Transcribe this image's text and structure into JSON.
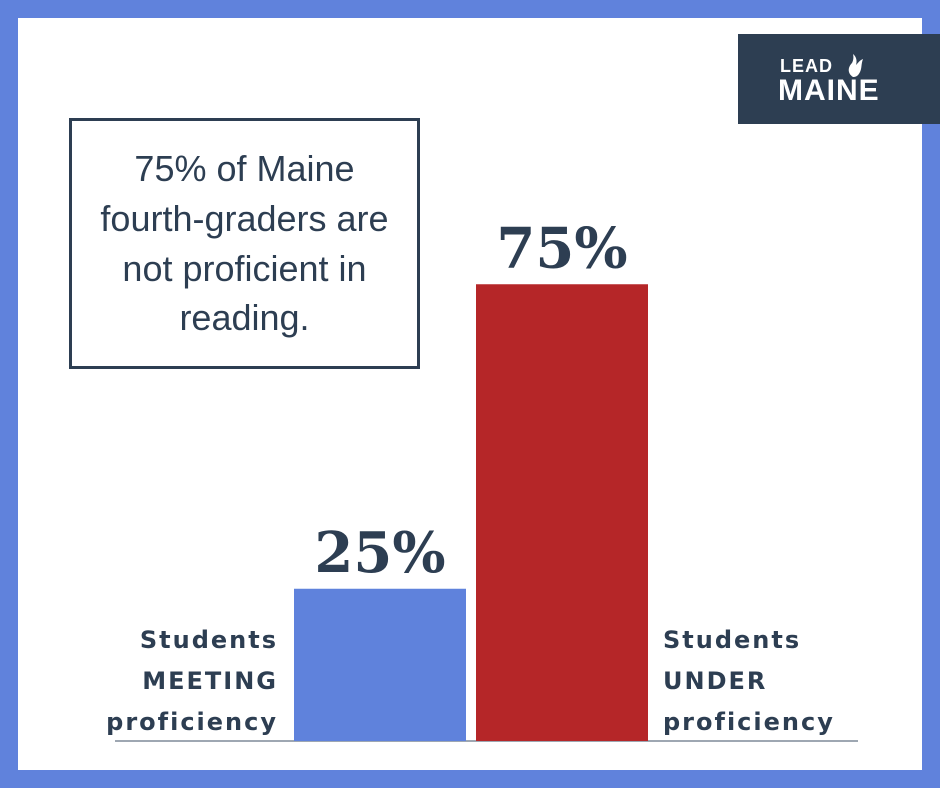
{
  "brand": {
    "lead": "LEAD",
    "main": "MAINE",
    "flame_icon": "flame-icon"
  },
  "note": {
    "text": "75% of Maine fourth-graders are not proficient in reading."
  },
  "labels": {
    "left_line1": "Students",
    "left_line2": "MEETING",
    "left_line3": "proficiency",
    "right_line1": "Students",
    "right_line2": "UNDER",
    "right_line3": "proficiency"
  },
  "colors": {
    "frame": "#6082dc",
    "navy": "#2d3e52",
    "meeting": "#5f82dc",
    "under": "#b52628"
  },
  "chart_data": {
    "type": "bar",
    "categories": [
      "Students MEETING proficiency",
      "Students UNDER proficiency"
    ],
    "values": [
      25,
      75
    ],
    "value_labels": [
      "25%",
      "75%"
    ],
    "ylim": [
      0,
      100
    ],
    "grid": false,
    "legend": "none"
  }
}
